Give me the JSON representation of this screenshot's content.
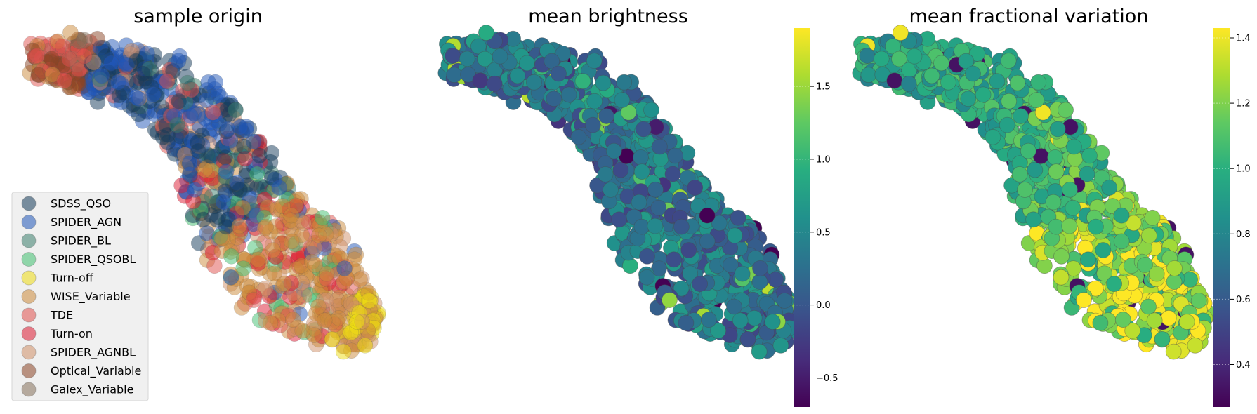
{
  "chart_data": [
    {
      "type": "scatter",
      "title": "sample origin",
      "legend_position": "lower-left",
      "grid": false,
      "series": [
        {
          "name": "SDSS_QSO",
          "color": "#143a5a",
          "region": "upper"
        },
        {
          "name": "SPIDER_AGN",
          "color": "#1f55b8",
          "region": "upper"
        },
        {
          "name": "SPIDER_BL",
          "color": "#3b7e6c",
          "region": "all"
        },
        {
          "name": "SPIDER_QSOBL",
          "color": "#3fbf6f",
          "region": "all"
        },
        {
          "name": "Turn-off",
          "color": "#eedc12",
          "region": "tip"
        },
        {
          "name": "WISE_Variable",
          "color": "#cc8a3a",
          "region": "lower"
        },
        {
          "name": "TDE",
          "color": "#e0504c",
          "region": "all"
        },
        {
          "name": "Turn-on",
          "color": "#dd1a32",
          "region": "lower"
        },
        {
          "name": "SPIDER_AGNBL",
          "color": "#cf8f68",
          "region": "lower"
        },
        {
          "name": "Optical_Variable",
          "color": "#8a4424",
          "region": "arm"
        },
        {
          "name": "Galex_Variable",
          "color": "#85705a",
          "region": "arm"
        }
      ]
    },
    {
      "type": "scatter",
      "title": "mean brightness",
      "colormap": "viridis",
      "clim": [
        -0.7,
        1.9
      ],
      "colorbar_ticks": [
        "−0.5",
        "0.0",
        "0.5",
        "1.0",
        "1.5"
      ],
      "colorbar_tick_values": [
        -0.5,
        0.0,
        0.5,
        1.0,
        1.5
      ],
      "grid": false
    },
    {
      "type": "scatter",
      "title": "mean fractional variation",
      "colormap": "viridis",
      "clim": [
        0.27,
        1.43
      ],
      "colorbar_ticks": [
        "0.4",
        "0.6",
        "0.8",
        "1.0",
        "1.2",
        "1.4"
      ],
      "colorbar_tick_values": [
        0.4,
        0.6,
        0.8,
        1.0,
        1.2,
        1.4
      ],
      "grid": false
    }
  ]
}
